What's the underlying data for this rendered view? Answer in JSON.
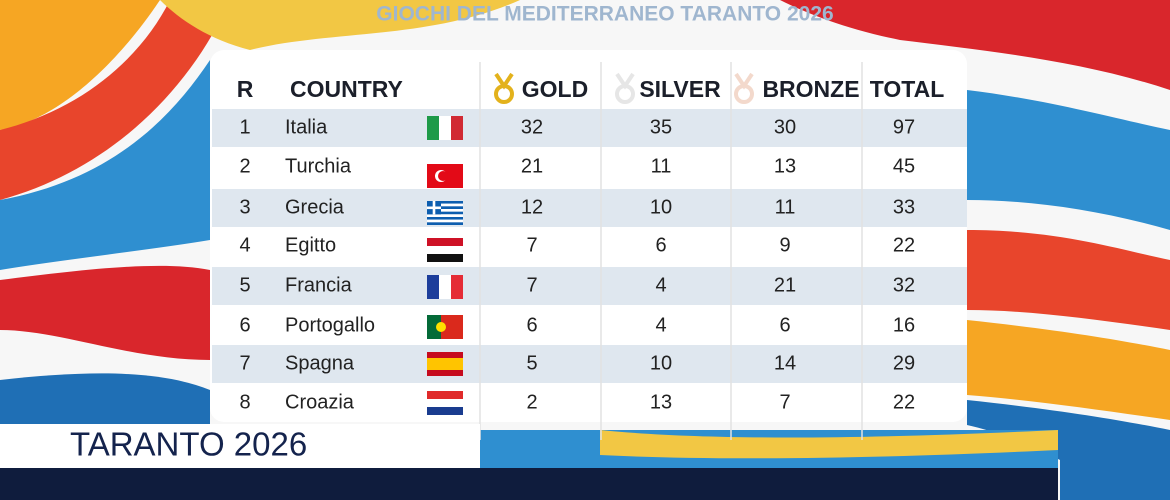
{
  "header": {
    "title": "GIOCHI DEL MEDITERRANEO TARANTO 2026"
  },
  "table": {
    "columns": [
      "R",
      "COUNTRY",
      "GOLD",
      "SILVER",
      "BRONZE",
      "TOTAL"
    ],
    "rows": [
      [
        1,
        "Italia",
        32,
        35,
        30,
        97
      ],
      [
        2,
        "Turchia",
        21,
        11,
        13,
        45
      ],
      [
        3,
        "Grecia",
        12,
        10,
        11,
        33
      ],
      [
        4,
        "Egitto",
        7,
        6,
        9,
        22
      ],
      [
        5,
        "Francia",
        7,
        4,
        21,
        32
      ],
      [
        6,
        "Portogallo",
        6,
        4,
        6,
        16
      ],
      [
        7,
        "Spagna",
        5,
        10,
        14,
        29
      ],
      [
        8,
        "Croazia",
        2,
        13,
        7,
        22
      ]
    ]
  },
  "caption": "TARANTO 2026"
}
